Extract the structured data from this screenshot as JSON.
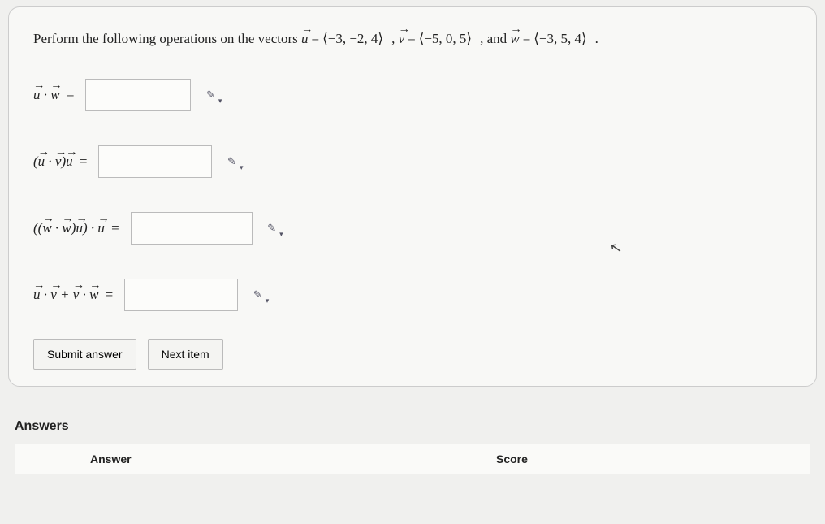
{
  "question_prefix": "Perform the following operations on the vectors ",
  "vectors": {
    "u": "⟨−3, −2, 4⟩",
    "v": "⟨−5, 0, 5⟩",
    "w": "⟨−3, 5, 4⟩"
  },
  "connectors": {
    "comma": ", ",
    "and": ", and ",
    "period": "."
  },
  "eq": "=",
  "rows": {
    "r1": {
      "input_width": "w130"
    },
    "r2": {
      "input_width": "w140"
    },
    "r3": {
      "input_width": "w150"
    },
    "r4": {
      "input_width": "w140"
    }
  },
  "buttons": {
    "submit": "Submit answer",
    "next": "Next item"
  },
  "answers": {
    "heading": "Answers",
    "columns": {
      "blank": "",
      "answer": "Answer",
      "score": "Score"
    }
  },
  "icons": {
    "pencil": "✎"
  },
  "style": {
    "card_bg": "#f8f8f6",
    "body_bg": "#f0f0ee",
    "border": "#cccccc",
    "input_border": "#bbbbbb",
    "text": "#222222"
  }
}
